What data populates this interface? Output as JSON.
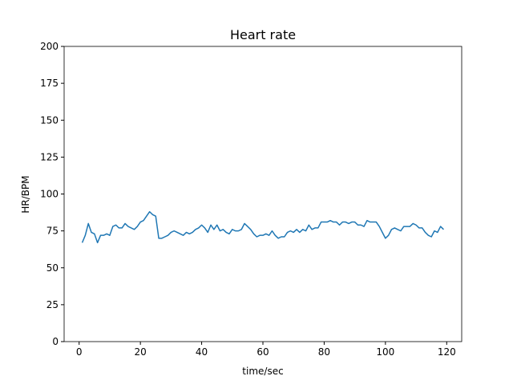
{
  "chart_data": {
    "type": "line",
    "title": "Heart rate",
    "xlabel": "time/sec",
    "ylabel": "HR/BPM",
    "x": [
      1,
      2,
      3,
      4,
      5,
      6,
      7,
      8,
      9,
      10,
      11,
      12,
      13,
      14,
      15,
      16,
      17,
      18,
      19,
      20,
      21,
      22,
      23,
      24,
      25,
      26,
      27,
      28,
      29,
      30,
      31,
      32,
      33,
      34,
      35,
      36,
      37,
      38,
      39,
      40,
      41,
      42,
      43,
      44,
      45,
      46,
      47,
      48,
      49,
      50,
      51,
      52,
      53,
      54,
      55,
      56,
      57,
      58,
      59,
      60,
      61,
      62,
      63,
      64,
      65,
      66,
      67,
      68,
      69,
      70,
      71,
      72,
      73,
      74,
      75,
      76,
      77,
      78,
      79,
      80,
      81,
      82,
      83,
      84,
      85,
      86,
      87,
      88,
      89,
      90,
      91,
      92,
      93,
      94,
      95,
      96,
      97,
      98,
      99,
      100,
      101,
      102,
      103,
      104,
      105,
      106,
      107,
      108,
      109,
      110,
      111,
      112,
      113,
      114,
      115,
      116,
      117,
      118,
      119
    ],
    "series": [
      {
        "name": "HR",
        "color": "#1f77b4",
        "values": [
          67,
          72,
          80,
          74,
          73,
          67,
          72,
          72,
          73,
          72,
          78,
          79,
          77,
          77,
          80,
          78,
          77,
          76,
          78,
          81,
          82,
          85,
          88,
          86,
          85,
          70,
          70,
          71,
          72,
          74,
          75,
          74,
          73,
          72,
          74,
          73,
          74,
          76,
          77,
          79,
          77,
          74,
          79,
          76,
          79,
          75,
          76,
          74,
          73,
          76,
          75,
          75,
          76,
          80,
          78,
          76,
          73,
          71,
          72,
          72,
          73,
          72,
          75,
          72,
          70,
          71,
          71,
          74,
          75,
          74,
          76,
          74,
          76,
          75,
          79,
          76,
          77,
          77,
          81,
          81,
          81,
          82,
          81,
          81,
          79,
          81,
          81,
          80,
          81,
          81,
          79,
          79,
          78,
          82,
          81,
          81,
          81,
          78,
          74,
          70,
          72,
          76,
          77,
          76,
          75,
          78,
          78,
          78,
          80,
          79,
          77,
          77,
          74,
          72,
          71,
          75,
          74,
          78,
          76
        ]
      }
    ],
    "xlim": [
      -4.9,
      124.9
    ],
    "ylim": [
      0,
      200
    ],
    "xticks": [
      0,
      20,
      40,
      60,
      80,
      100,
      120
    ],
    "yticks": [
      0,
      25,
      50,
      75,
      100,
      125,
      150,
      175,
      200
    ]
  }
}
